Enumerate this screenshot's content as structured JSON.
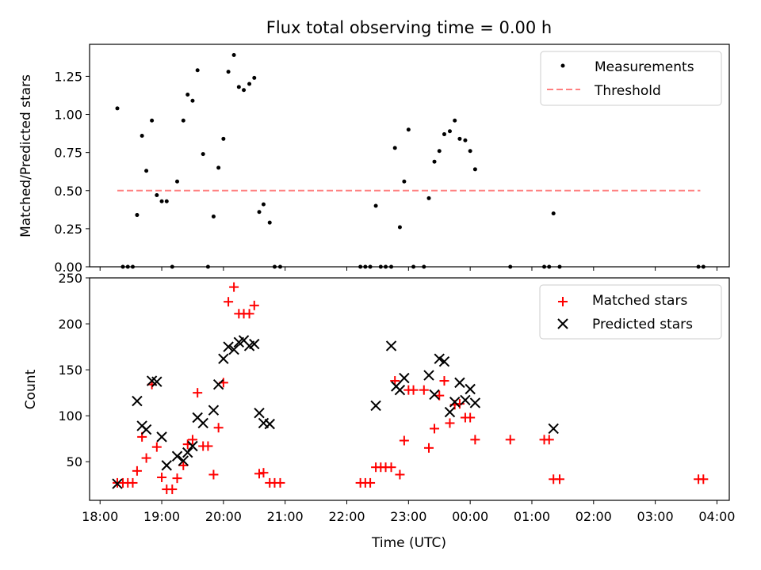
{
  "colors": {
    "measurement": "#000000",
    "threshold": "#ff8080",
    "matched": "#ff0000",
    "predicted": "#000000"
  },
  "chart_data": [
    {
      "type": "scatter",
      "title": "Flux total observing time = 0.00 h",
      "xlabel": "",
      "ylabel": "Matched/Predicted stars",
      "ylim": [
        0,
        1.46
      ],
      "xlim": [
        17.83,
        28.2
      ],
      "yticks": [
        0.0,
        0.25,
        0.5,
        0.75,
        1.0,
        1.25
      ],
      "yticklabels": [
        "0.00",
        "0.25",
        "0.50",
        "0.75",
        "1.00",
        "1.25"
      ],
      "legend_position": "top-right",
      "legend": [
        "Measurements",
        "Threshold"
      ],
      "threshold": {
        "value": 0.5,
        "x_start": 18.28,
        "x_end": 27.73
      },
      "series": [
        {
          "name": "Measurements",
          "x": [
            18.28,
            18.37,
            18.45,
            18.53,
            18.6,
            18.68,
            18.75,
            18.84,
            18.92,
            19.0,
            19.08,
            19.17,
            19.25,
            19.35,
            19.42,
            19.5,
            19.58,
            19.67,
            19.75,
            19.84,
            19.92,
            20.0,
            20.08,
            20.17,
            20.25,
            20.33,
            20.42,
            20.5,
            20.58,
            20.65,
            20.75,
            20.83,
            20.92,
            22.22,
            22.3,
            22.38,
            22.47,
            22.55,
            22.63,
            22.72,
            22.78,
            22.86,
            22.93,
            23.0,
            23.08,
            23.25,
            23.33,
            23.42,
            23.5,
            23.58,
            23.67,
            23.75,
            23.83,
            23.92,
            24.0,
            24.08,
            24.65,
            25.2,
            25.28,
            25.35,
            25.45,
            27.7,
            27.78
          ],
          "y": [
            1.04,
            0.0,
            0.0,
            0.0,
            0.34,
            0.86,
            0.63,
            0.96,
            0.47,
            0.43,
            0.43,
            0.0,
            0.56,
            0.96,
            1.13,
            1.09,
            1.29,
            0.74,
            0.0,
            0.33,
            0.65,
            0.84,
            1.28,
            1.39,
            1.18,
            1.16,
            1.2,
            1.24,
            0.36,
            0.41,
            0.29,
            0.0,
            0.0,
            0.0,
            0.0,
            0.0,
            0.4,
            0.0,
            0.0,
            0.0,
            0.78,
            0.26,
            0.56,
            0.9,
            0.0,
            0.0,
            0.45,
            0.69,
            0.76,
            0.87,
            0.89,
            0.96,
            0.84,
            0.83,
            0.76,
            0.64,
            0.0,
            0.0,
            0.0,
            0.35,
            0.0,
            0.0,
            0.0
          ]
        }
      ]
    },
    {
      "type": "scatter",
      "title": "",
      "xlabel": "Time (UTC)",
      "ylabel": "Count",
      "ylim": [
        8,
        250
      ],
      "xlim": [
        17.83,
        28.2
      ],
      "yticks": [
        50,
        100,
        150,
        200,
        250
      ],
      "yticklabels": [
        "50",
        "100",
        "150",
        "200",
        "250"
      ],
      "xticks": [
        18,
        19,
        20,
        21,
        22,
        23,
        24,
        25,
        26,
        27,
        28
      ],
      "xticklabels": [
        "18:00",
        "19:00",
        "20:00",
        "21:00",
        "22:00",
        "23:00",
        "00:00",
        "01:00",
        "02:00",
        "03:00",
        "04:00"
      ],
      "legend_position": "top-right",
      "legend": [
        "Matched stars",
        "Predicted stars"
      ],
      "series": [
        {
          "name": "Matched stars",
          "x": [
            18.28,
            18.37,
            18.45,
            18.53,
            18.6,
            18.68,
            18.75,
            18.84,
            18.92,
            19.0,
            19.08,
            19.17,
            19.25,
            19.35,
            19.42,
            19.5,
            19.58,
            19.67,
            19.75,
            19.84,
            19.92,
            20.0,
            20.08,
            20.17,
            20.25,
            20.33,
            20.42,
            20.5,
            20.58,
            20.65,
            20.75,
            20.83,
            20.92,
            22.22,
            22.3,
            22.38,
            22.47,
            22.55,
            22.63,
            22.72,
            22.78,
            22.86,
            22.93,
            23.0,
            23.08,
            23.25,
            23.33,
            23.42,
            23.5,
            23.58,
            23.67,
            23.75,
            23.83,
            23.92,
            24.0,
            24.08,
            24.65,
            25.2,
            25.28,
            25.35,
            25.45,
            27.7,
            27.78
          ],
          "y": [
            27,
            27,
            27,
            27,
            40,
            77,
            54,
            134,
            66,
            33,
            20,
            20,
            32,
            46,
            69,
            74,
            125,
            67,
            67,
            36,
            87,
            136,
            224,
            240,
            211,
            211,
            211,
            220,
            37,
            38,
            27,
            27,
            27,
            27,
            27,
            27,
            44,
            44,
            44,
            44,
            138,
            36,
            73,
            128,
            128,
            128,
            65,
            86,
            122,
            138,
            92,
            112,
            113,
            98,
            98,
            74,
            74,
            74,
            74,
            31,
            31,
            31,
            31
          ]
        },
        {
          "name": "Predicted stars",
          "x": [
            18.28,
            18.6,
            18.68,
            18.75,
            18.84,
            18.92,
            19.0,
            19.08,
            19.25,
            19.35,
            19.42,
            19.5,
            19.58,
            19.67,
            19.84,
            19.92,
            20.0,
            20.08,
            20.17,
            20.25,
            20.33,
            20.42,
            20.5,
            20.58,
            20.65,
            20.75,
            22.47,
            22.72,
            22.8,
            22.86,
            22.93,
            23.33,
            23.42,
            23.5,
            23.58,
            23.67,
            23.75,
            23.83,
            23.92,
            24.0,
            24.08,
            25.35
          ],
          "y": [
            26,
            116,
            89,
            85,
            138,
            137,
            77,
            46,
            56,
            51,
            60,
            67,
            98,
            92,
            106,
            134,
            162,
            175,
            172,
            180,
            182,
            176,
            178,
            103,
            92,
            91,
            111,
            176,
            132,
            128,
            141,
            144,
            123,
            162,
            159,
            104,
            115,
            136,
            117,
            129,
            114,
            86
          ]
        }
      ]
    }
  ]
}
